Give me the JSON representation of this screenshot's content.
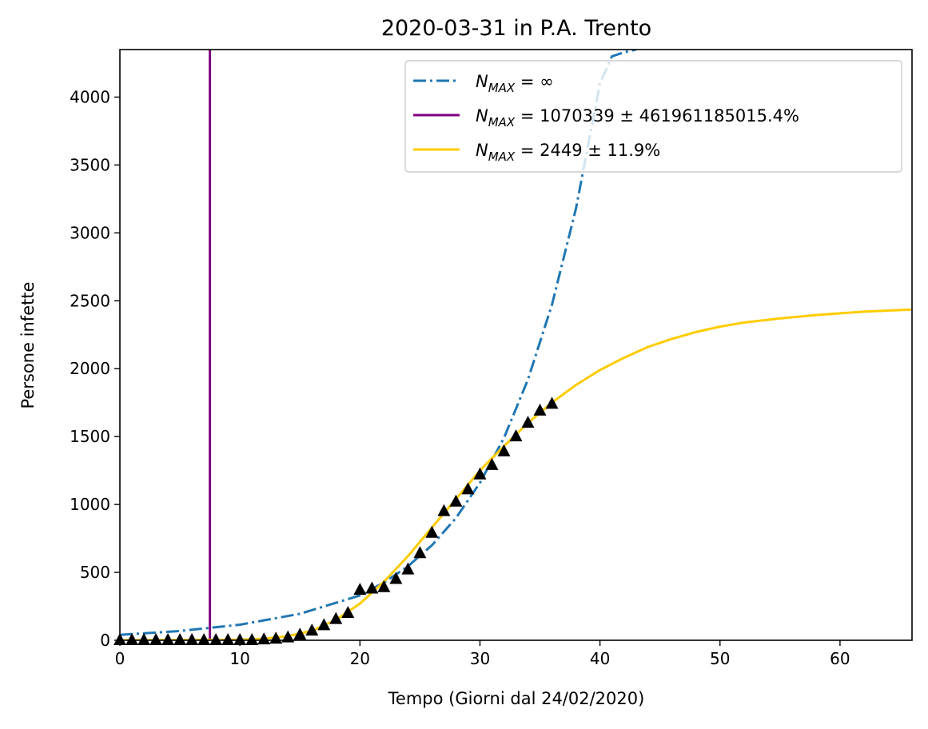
{
  "chart_data": {
    "type": "line",
    "title": "2020-03-31 in P.A. Trento",
    "xlabel": "Tempo (Giorni dal 24/02/2020)",
    "ylabel": "Persone infette",
    "xlim": [
      0,
      66
    ],
    "ylim": [
      0,
      4350
    ],
    "xticks": [
      0,
      10,
      20,
      30,
      40,
      50,
      60
    ],
    "yticks": [
      0,
      500,
      1000,
      1500,
      2000,
      2500,
      3000,
      3500,
      4000
    ],
    "grid": false,
    "legend_position": "top-right",
    "series": [
      {
        "kind": "exponential-fit",
        "legend_symbol": "N",
        "legend_subscript": "MAX",
        "legend_rest": " = ∞",
        "color": "#1f77b4",
        "line_style": "dashdot",
        "x": [
          0,
          5,
          10,
          15,
          20,
          22,
          24,
          26,
          28,
          30,
          32,
          34,
          36,
          38,
          40,
          41,
          42,
          43
        ],
        "y": [
          40,
          68,
          115,
          195,
          330,
          425,
          545,
          700,
          900,
          1160,
          1490,
          1920,
          2470,
          3180,
          4100,
          4300,
          4330,
          4350
        ]
      },
      {
        "kind": "vertical-line",
        "legend_symbol": "N",
        "legend_subscript": "MAX",
        "legend_rest": " = 1070339 ± 461961185015.4%",
        "color": "#800080",
        "line_style": "solid",
        "x": [
          7.5,
          7.5
        ],
        "y": [
          0,
          4350
        ]
      },
      {
        "kind": "logistic-fit",
        "legend_symbol": "N",
        "legend_subscript": "MAX",
        "legend_rest": " = 2449 ± 11.9%",
        "color": "#ffcc00",
        "line_style": "solid",
        "x": [
          0,
          5,
          10,
          12,
          14,
          16,
          18,
          20,
          22,
          24,
          26,
          28,
          30,
          32,
          34,
          36,
          38,
          40,
          42,
          44,
          46,
          48,
          50,
          52,
          55,
          58,
          62,
          66
        ],
        "y": [
          0,
          1,
          5,
          12,
          30,
          70,
          150,
          270,
          430,
          620,
          830,
          1040,
          1250,
          1430,
          1600,
          1750,
          1880,
          1990,
          2080,
          2160,
          2220,
          2270,
          2310,
          2340,
          2370,
          2395,
          2420,
          2435
        ]
      },
      {
        "kind": "observed",
        "color": "#000000",
        "marker": "triangle",
        "x": [
          0,
          1,
          2,
          3,
          4,
          5,
          6,
          7,
          8,
          9,
          10,
          11,
          12,
          13,
          14,
          15,
          16,
          17,
          18,
          19,
          20,
          21,
          22,
          23,
          24,
          25,
          26,
          27,
          28,
          29,
          30,
          31,
          32,
          33,
          34,
          35,
          36
        ],
        "y": [
          0,
          0,
          0,
          0,
          0,
          0,
          0,
          0,
          0,
          0,
          0,
          0,
          5,
          10,
          20,
          40,
          70,
          110,
          155,
          200,
          370,
          380,
          390,
          450,
          520,
          640,
          790,
          950,
          1020,
          1110,
          1220,
          1290,
          1390,
          1500,
          1600,
          1690,
          1740
        ]
      }
    ]
  }
}
